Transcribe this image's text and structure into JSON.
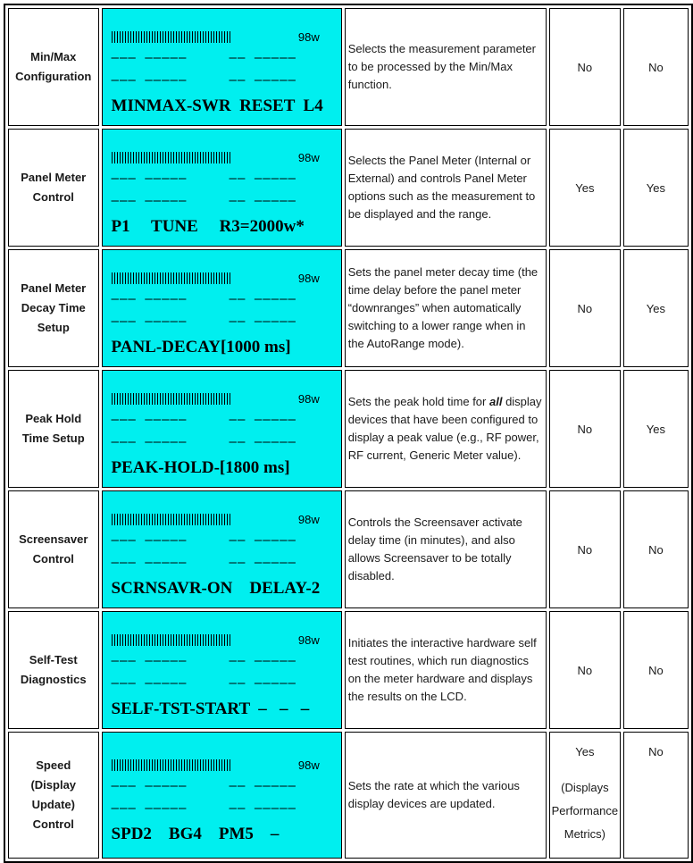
{
  "lcd": {
    "bg_color": "#00efef",
    "power": "98w",
    "dash_line": "––– –––––     –– –––––"
  },
  "rows": [
    {
      "label": "Min/Max\nConfiguration",
      "lcd_bottom": "MINMAX-SWR  RESET  L4",
      "description": "Selects the measurement parameter to be processed by the Min/Max function.",
      "col4": "No",
      "col5": "No"
    },
    {
      "label": "Panel Meter\nControl",
      "lcd_bottom": "P1     TUNE     R3=2000w*",
      "description": "Selects the Panel Meter (Internal or External) and controls Panel Meter options such as the measurement to be displayed and the range.",
      "col4": "Yes",
      "col5": "Yes"
    },
    {
      "label": "Panel Meter\nDecay Time\nSetup",
      "lcd_bottom": "PANL-DECAY[1000 ms]",
      "description": "Sets the panel meter decay time (the time delay before the panel meter “downranges” when automatically switching to a lower range when in the AutoRange mode).",
      "col4": "No",
      "col5": "Yes"
    },
    {
      "label": "Peak Hold\nTime Setup",
      "lcd_bottom": "PEAK-HOLD-[1800 ms]",
      "desc_pre": "Sets the peak hold time for ",
      "desc_em": "all",
      "desc_post": " display devices that have been configured to display a peak value (e.g., RF power, RF current, Generic Meter value).",
      "col4": "No",
      "col5": "Yes"
    },
    {
      "label": "Screensaver\nControl",
      "lcd_bottom": "SCRNSAVR-ON    DELAY-2",
      "description": "Controls the Screensaver activate delay time (in minutes), and also allows Screensaver to be totally disabled.",
      "col4": "No",
      "col5": "No"
    },
    {
      "label": "Self-Test\nDiagnostics",
      "lcd_bottom": "SELF-TST-START  –   –   –",
      "description": "Initiates the interactive hardware self test routines, which run diagnostics on the meter hardware and displays the results on the LCD.",
      "col4": "No",
      "col5": "No"
    },
    {
      "label": "Speed\n(Display\nUpdate)\nControl",
      "lcd_bottom": "SPD2    BG4    PM5    –",
      "description": "Sets the rate at which the various display devices are updated.",
      "col4": "Yes",
      "col4_note": "(Displays\nPerformance\nMetrics)",
      "col5": "No"
    }
  ]
}
